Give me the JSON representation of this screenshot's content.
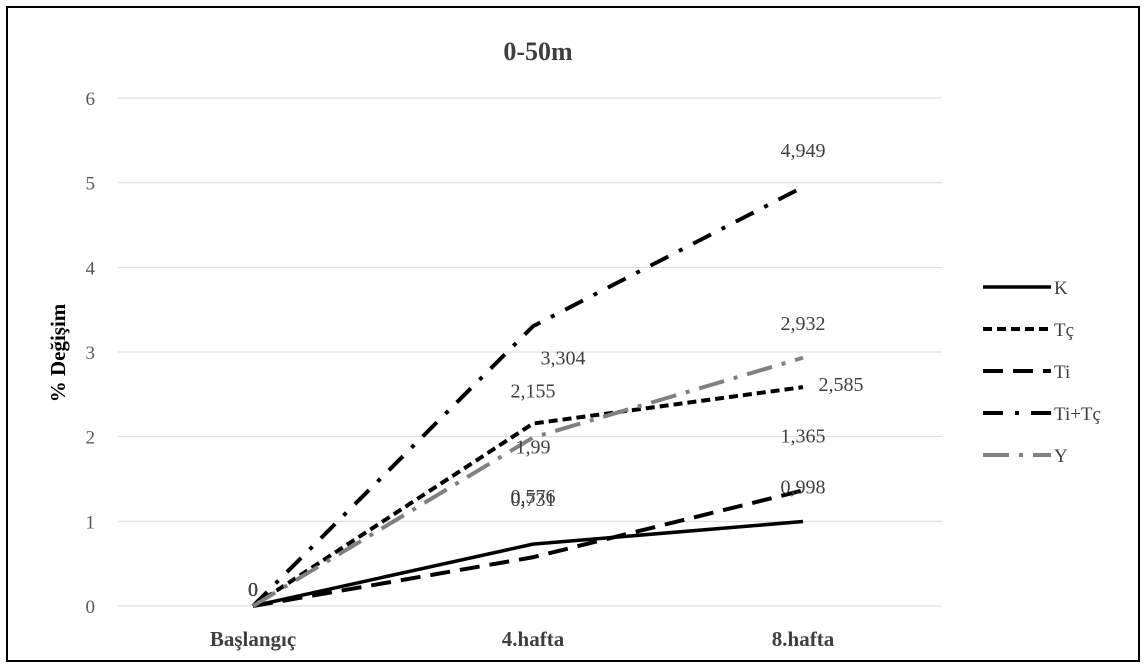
{
  "chart_data": {
    "type": "line",
    "title": "0-50m",
    "xlabel": "",
    "ylabel": "% Değişim",
    "categories": [
      "Başlangıç",
      "4.hafta",
      "8.hafta"
    ],
    "ylim": [
      0,
      6
    ],
    "yticks": [
      "0",
      "1",
      "2",
      "3",
      "4",
      "5",
      "6"
    ],
    "grid": true,
    "legend_position": "right",
    "series": [
      {
        "name": "K",
        "values": [
          0,
          0.731,
          0.998
        ],
        "labels": [
          "0",
          "0,731",
          "0,998"
        ],
        "color": "#000000",
        "dash": "solid"
      },
      {
        "name": "Tç",
        "values": [
          0,
          2.155,
          2.585
        ],
        "labels": [
          "0",
          "2,155",
          "2,585"
        ],
        "color": "#000000",
        "dash": "short-dash"
      },
      {
        "name": "Ti",
        "values": [
          0,
          0.576,
          1.365
        ],
        "labels": [
          "0",
          "0,576",
          "1,365"
        ],
        "color": "#000000",
        "dash": "long-dash"
      },
      {
        "name": "Ti+Tç",
        "values": [
          0,
          3.304,
          4.949
        ],
        "labels": [
          "0",
          "3,304",
          "4,949"
        ],
        "color": "#000000",
        "dash": "dash-dot"
      },
      {
        "name": "Y",
        "values": [
          0,
          1.99,
          2.932
        ],
        "labels": [
          "0",
          "1,99",
          "2,932"
        ],
        "color": "#808080",
        "dash": "long-dash-dot"
      }
    ]
  }
}
